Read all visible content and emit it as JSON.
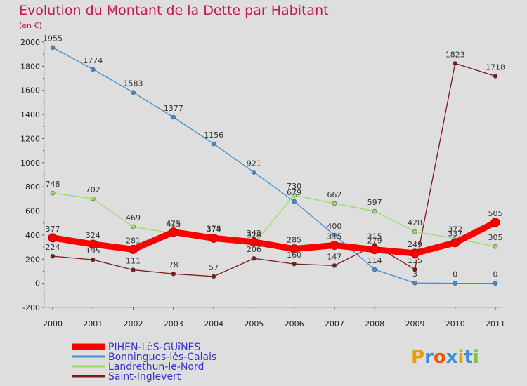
{
  "chart_data": {
    "type": "line",
    "title": "Evolution du Montant de la Dette par Habitant",
    "subtitle": "(en €)",
    "x": [
      "2000",
      "2001",
      "2002",
      "2003",
      "2004",
      "2005",
      "2006",
      "2007",
      "2008",
      "2009",
      "2010",
      "2011"
    ],
    "ylim": [
      -200,
      2000
    ],
    "yticks": [
      -200,
      0,
      200,
      400,
      600,
      800,
      1000,
      1200,
      1400,
      1600,
      1800,
      2000
    ],
    "grid": false,
    "legend_position": "bottom-left",
    "series": [
      {
        "name": "PIHEN-LèS-GUîNES",
        "color": "#ff0000",
        "values": [
          377,
          324,
          281,
          425,
          374,
          342,
          285,
          315,
          279,
          249,
          337,
          505
        ]
      },
      {
        "name": "Bonningues-lès-Calais",
        "color": "#3a8fd6",
        "values": [
          1955,
          1774,
          1583,
          1377,
          1156,
          921,
          679,
          400,
          114,
          3,
          0,
          0
        ]
      },
      {
        "name": "Landrethun-le-Nord",
        "color": "#99e060",
        "values": [
          748,
          702,
          469,
          415,
          378,
          328,
          730,
          662,
          597,
          428,
          372,
          305
        ]
      },
      {
        "name": "Saint-Inglevert",
        "color": "#7a1a1a",
        "values": [
          224,
          195,
          111,
          78,
          57,
          206,
          160,
          147,
          315,
          115,
          1823,
          1718
        ]
      }
    ]
  },
  "logo": {
    "text": "Proxiti"
  }
}
